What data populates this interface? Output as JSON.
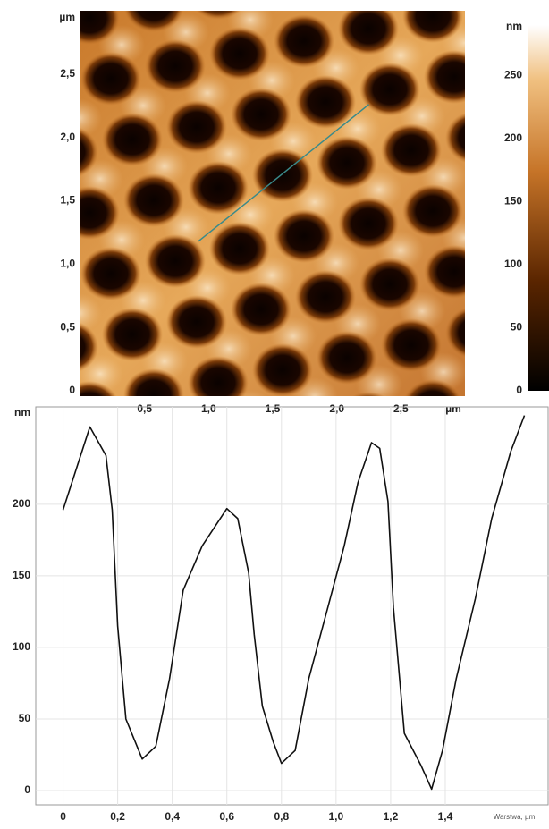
{
  "chart_data": [
    {
      "type": "image",
      "xlabel": "µm",
      "ylabel": "µm",
      "xlim": [
        0,
        3
      ],
      "ylim": [
        0,
        3
      ],
      "xticks": [
        {
          "value": 0.5,
          "label": "0,5"
        },
        {
          "value": 1.0,
          "label": "1,0"
        },
        {
          "value": 1.5,
          "label": "1,5"
        },
        {
          "value": 2.0,
          "label": "2,0"
        },
        {
          "value": 2.5,
          "label": "2,5"
        }
      ],
      "yticks": [
        0,
        {
          "value": 0.5,
          "label": "0,5"
        },
        {
          "value": 1.0,
          "label": "1,0"
        },
        {
          "value": 1.5,
          "label": "1,5"
        },
        {
          "value": 2.0,
          "label": "2,0"
        },
        {
          "value": 2.5,
          "label": "2,5"
        }
      ],
      "profile_line": {
        "x": [
          0.92,
          2.25
        ],
        "y": [
          1.18,
          2.26
        ],
        "color": "#3a8a8a"
      },
      "colorbar": {
        "label": "nm",
        "lim": [
          0,
          290
        ],
        "ticks": [
          0,
          50,
          100,
          150,
          200,
          250
        ]
      }
    },
    {
      "type": "line",
      "xlabel": "Warstwa, µm",
      "ylabel": "nm",
      "xlim": [
        -0.1,
        1.78
      ],
      "ylim": [
        -10,
        268
      ],
      "xticks": [
        0,
        {
          "value": 0.2,
          "label": "0,2"
        },
        {
          "value": 0.4,
          "label": "0,4"
        },
        {
          "value": 0.6,
          "label": "0,6"
        },
        {
          "value": 0.8,
          "label": "0,8"
        },
        {
          "value": 1.0,
          "label": "1,0"
        },
        {
          "value": 1.2,
          "label": "1,2"
        },
        {
          "value": 1.4,
          "label": "1,4"
        }
      ],
      "yticks": [
        0,
        50,
        100,
        150,
        200
      ],
      "grid": true,
      "color": "#111111",
      "x": [
        0,
        0.098,
        0.157,
        0.18,
        0.2,
        0.23,
        0.29,
        0.34,
        0.39,
        0.44,
        0.51,
        0.6,
        0.64,
        0.68,
        0.7,
        0.73,
        0.77,
        0.8,
        0.85,
        0.9,
        0.97,
        1.03,
        1.08,
        1.13,
        1.16,
        1.19,
        1.21,
        1.25,
        1.31,
        1.35,
        1.39,
        1.44,
        1.51,
        1.57,
        1.64,
        1.69
      ],
      "values": [
        196,
        254,
        234,
        196,
        115,
        50,
        22,
        31,
        78,
        140,
        171,
        197,
        190,
        152,
        109,
        59,
        34,
        19,
        28,
        78,
        128,
        171,
        215,
        243,
        239,
        202,
        128,
        40,
        18,
        1,
        28,
        78,
        134,
        190,
        237,
        262
      ]
    }
  ]
}
